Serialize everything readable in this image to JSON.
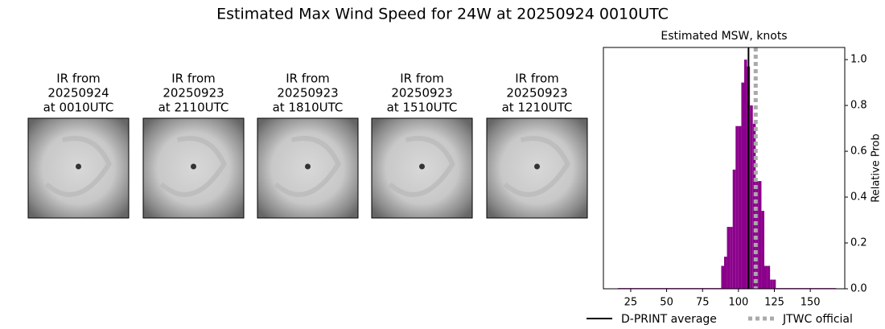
{
  "title": "Estimated Max Wind Speed for 24W at 20250924 0010UTC",
  "panels": [
    {
      "title": [
        "IR from",
        "20250924",
        "at 0010UTC"
      ]
    },
    {
      "title": [
        "IR from",
        "20250923",
        "at 2110UTC"
      ]
    },
    {
      "title": [
        "IR from",
        "20250923",
        "at 1810UTC"
      ]
    },
    {
      "title": [
        "IR from",
        "20250923",
        "at 1510UTC"
      ]
    },
    {
      "title": [
        "IR from",
        "20250923",
        "at 1210UTC"
      ]
    }
  ],
  "chart_data": {
    "type": "histogram",
    "title": "Estimated MSW, knots",
    "y_label": "Relative Prob",
    "color": "#8b008b",
    "bins": [
      16,
      88,
      90,
      92,
      94,
      96,
      98,
      100,
      102,
      104,
      106,
      108,
      110,
      112,
      114,
      116,
      118,
      120,
      122,
      124,
      126,
      168
    ],
    "counts": [
      0.003,
      0.1,
      0.14,
      0.27,
      0.27,
      0.52,
      0.71,
      0.71,
      0.9,
      1.0,
      0.97,
      0.8,
      0.72,
      0.47,
      0.47,
      0.34,
      0.1,
      0.1,
      0.04,
      0.04,
      0.003
    ],
    "xlim": [
      6,
      174
    ],
    "xticks": [
      25,
      50,
      75,
      100,
      125,
      150
    ],
    "ylim": [
      0,
      1.053
    ],
    "yticks": [
      {
        "value": 0,
        "label": "0.0"
      },
      0.2,
      0.4,
      0.6,
      0.8,
      {
        "value": 1,
        "label": "1.0"
      }
    ],
    "lines": [
      {
        "name": "D-PRINT average",
        "value": 107,
        "color": "#000000",
        "style": "solid"
      },
      {
        "name": "JTWC official",
        "value": 112,
        "color": "#aaaaaa",
        "style": "dotted"
      }
    ]
  }
}
